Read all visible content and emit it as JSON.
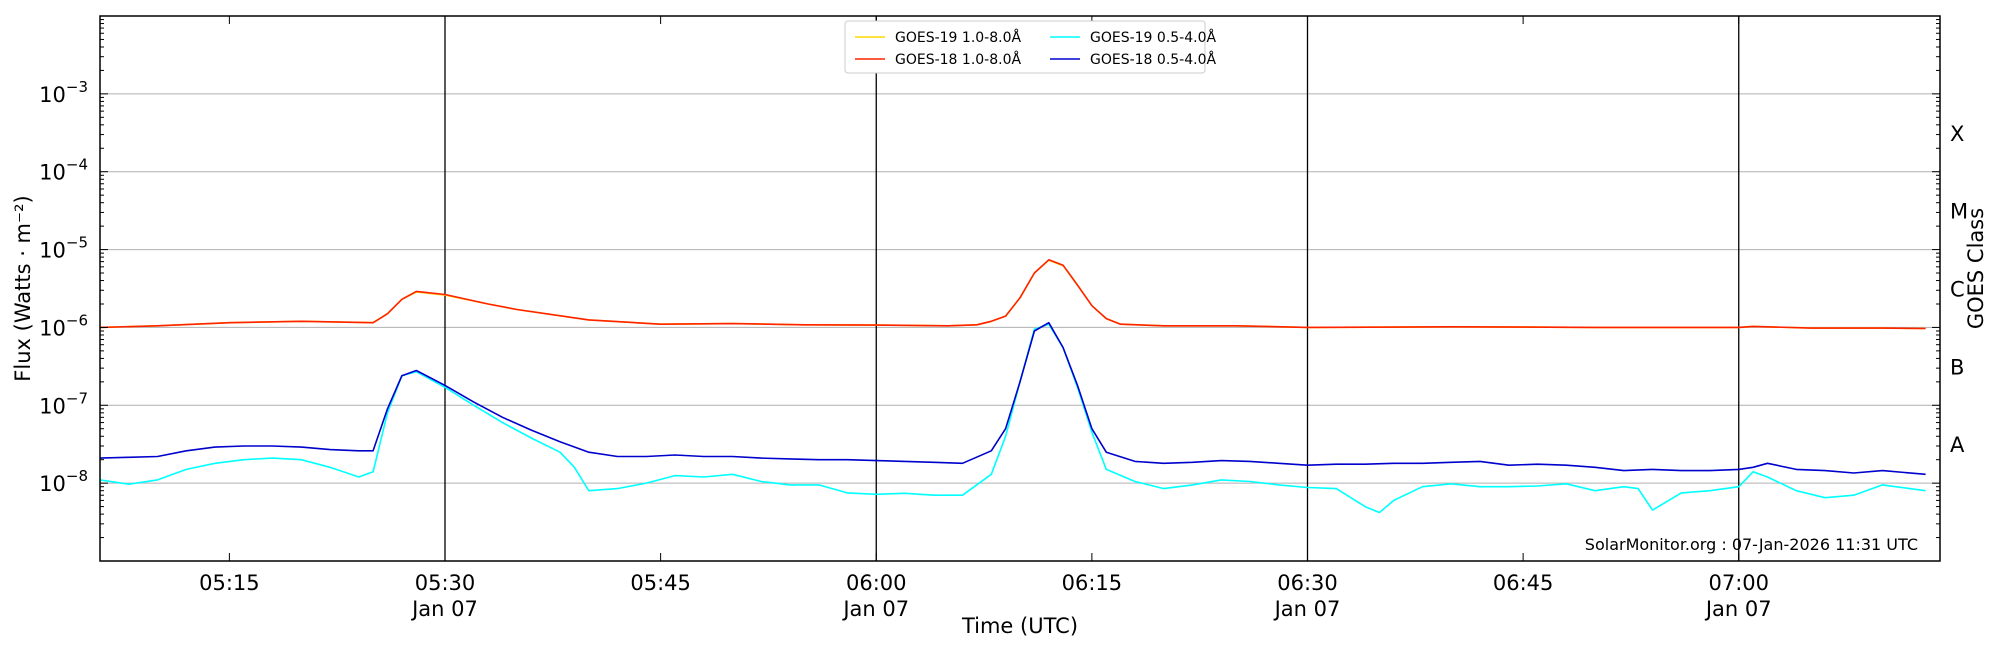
{
  "chart_data": {
    "type": "line",
    "xlabel": "Time (UTC)",
    "ylabel": "Flux (Watts · m⁻²)",
    "y2label": "GOES Class",
    "yscale": "log",
    "xlim": [
      "05:06",
      "07:14"
    ],
    "ylim": [
      1e-09,
      0.01
    ],
    "grid": "horizontal",
    "legend_position": "top-center",
    "x_ticks": [
      {
        "time": "05:15",
        "date": ""
      },
      {
        "time": "05:30",
        "date": "Jan 07"
      },
      {
        "time": "05:45",
        "date": ""
      },
      {
        "time": "06:00",
        "date": "Jan 07"
      },
      {
        "time": "06:15",
        "date": ""
      },
      {
        "time": "06:30",
        "date": "Jan 07"
      },
      {
        "time": "06:45",
        "date": ""
      },
      {
        "time": "07:00",
        "date": "Jan 07"
      }
    ],
    "y_ticks": [
      {
        "value": 1e-08,
        "base": "10",
        "exp": "−8"
      },
      {
        "value": 1e-07,
        "base": "10",
        "exp": "−7"
      },
      {
        "value": 1e-06,
        "base": "10",
        "exp": "−6"
      },
      {
        "value": 1e-05,
        "base": "10",
        "exp": "−5"
      },
      {
        "value": 0.0001,
        "base": "10",
        "exp": "−4"
      },
      {
        "value": 0.001,
        "base": "10",
        "exp": "−3"
      }
    ],
    "class_labels": [
      {
        "label": "A",
        "lower": 1e-08,
        "upper": 1e-07
      },
      {
        "label": "B",
        "lower": 1e-07,
        "upper": 1e-06
      },
      {
        "label": "C",
        "lower": 1e-06,
        "upper": 1e-05
      },
      {
        "label": "M",
        "lower": 1e-05,
        "upper": 0.0001
      },
      {
        "label": "X",
        "lower": 0.0001,
        "upper": 0.001
      }
    ],
    "date_lines": [
      "05:30",
      "06:00",
      "06:30",
      "07:00"
    ],
    "annotation": "SolarMonitor.org : 07-Jan-2026 11:31 UTC",
    "series": [
      {
        "name": "GOES-19 1.0-8.0Å",
        "color": "#ffd700",
        "x": [
          "05:06",
          "05:10",
          "05:15",
          "05:20",
          "05:25",
          "05:26",
          "05:27",
          "05:28",
          "05:30",
          "05:33",
          "05:35",
          "05:40",
          "05:45",
          "05:50",
          "05:55",
          "06:00",
          "06:05",
          "06:07",
          "06:08",
          "06:09",
          "06:10",
          "06:11",
          "06:12",
          "06:13",
          "06:14",
          "06:15",
          "06:16",
          "06:17",
          "06:20",
          "06:25",
          "06:30",
          "06:40",
          "06:50",
          "07:00",
          "07:01",
          "07:05",
          "07:10",
          "07:13"
        ],
        "values": [
          1e-06,
          1.05e-06,
          1.15e-06,
          1.2e-06,
          1.15e-06,
          1.5e-06,
          2.3e-06,
          2.85e-06,
          2.6e-06,
          2e-06,
          1.7e-06,
          1.25e-06,
          1.1e-06,
          1.12e-06,
          1.08e-06,
          1.07e-06,
          1.05e-06,
          1.08e-06,
          1.2e-06,
          1.4e-06,
          2.4e-06,
          5e-06,
          7.3e-06,
          6.2e-06,
          3.5e-06,
          1.9e-06,
          1.3e-06,
          1.1e-06,
          1.05e-06,
          1.05e-06,
          1e-06,
          1.02e-06,
          1e-06,
          1e-06,
          1.03e-06,
          9.8e-07,
          9.8e-07,
          9.7e-07
        ]
      },
      {
        "name": "GOES-18 1.0-8.0Å",
        "color": "#ff2200",
        "x": [
          "05:06",
          "05:10",
          "05:15",
          "05:20",
          "05:25",
          "05:26",
          "05:27",
          "05:28",
          "05:30",
          "05:33",
          "05:35",
          "05:40",
          "05:45",
          "05:50",
          "05:55",
          "06:00",
          "06:05",
          "06:07",
          "06:08",
          "06:09",
          "06:10",
          "06:11",
          "06:12",
          "06:13",
          "06:14",
          "06:15",
          "06:16",
          "06:17",
          "06:20",
          "06:25",
          "06:30",
          "06:40",
          "06:50",
          "07:00",
          "07:01",
          "07:05",
          "07:10",
          "07:13"
        ],
        "values": [
          1e-06,
          1.05e-06,
          1.15e-06,
          1.2e-06,
          1.15e-06,
          1.5e-06,
          2.3e-06,
          2.9e-06,
          2.65e-06,
          2e-06,
          1.7e-06,
          1.25e-06,
          1.1e-06,
          1.12e-06,
          1.08e-06,
          1.07e-06,
          1.05e-06,
          1.08e-06,
          1.2e-06,
          1.4e-06,
          2.4e-06,
          5e-06,
          7.4e-06,
          6.3e-06,
          3.5e-06,
          1.9e-06,
          1.3e-06,
          1.1e-06,
          1.05e-06,
          1.05e-06,
          1e-06,
          1.02e-06,
          1e-06,
          1e-06,
          1.03e-06,
          9.8e-07,
          9.8e-07,
          9.7e-07
        ]
      },
      {
        "name": "GOES-19 0.5-4.0Å",
        "color": "#00ffff",
        "x": [
          "05:06",
          "05:08",
          "05:10",
          "05:12",
          "05:14",
          "05:16",
          "05:18",
          "05:20",
          "05:22",
          "05:24",
          "05:25",
          "05:26",
          "05:27",
          "05:28",
          "05:30",
          "05:32",
          "05:34",
          "05:36",
          "05:38",
          "05:39",
          "05:40",
          "05:42",
          "05:44",
          "05:46",
          "05:48",
          "05:50",
          "05:52",
          "05:54",
          "05:56",
          "05:58",
          "06:00",
          "06:02",
          "06:04",
          "06:06",
          "06:08",
          "06:09",
          "06:10",
          "06:11",
          "06:12",
          "06:13",
          "06:14",
          "06:15",
          "06:16",
          "06:18",
          "06:20",
          "06:22",
          "06:24",
          "06:26",
          "06:28",
          "06:30",
          "06:32",
          "06:34",
          "06:35",
          "06:36",
          "06:38",
          "06:40",
          "06:42",
          "06:44",
          "06:46",
          "06:48",
          "06:50",
          "06:52",
          "06:53",
          "06:54",
          "06:56",
          "06:58",
          "07:00",
          "07:01",
          "07:02",
          "07:04",
          "07:06",
          "07:08",
          "07:10",
          "07:13"
        ],
        "values": [
          1.1e-08,
          9.7e-09,
          1.1e-08,
          1.5e-08,
          1.8e-08,
          2e-08,
          2.1e-08,
          2e-08,
          1.6e-08,
          1.2e-08,
          1.4e-08,
          8e-08,
          2.4e-07,
          2.7e-07,
          1.7e-07,
          1e-07,
          6e-08,
          3.8e-08,
          2.5e-08,
          1.6e-08,
          8e-09,
          8.5e-09,
          1e-08,
          1.25e-08,
          1.2e-08,
          1.3e-08,
          1.05e-08,
          9.5e-09,
          9.5e-09,
          7.5e-09,
          7.2e-09,
          7.4e-09,
          7e-09,
          7e-09,
          1.3e-08,
          4e-08,
          2e-07,
          9.5e-07,
          1.1e-06,
          5.5e-07,
          1.7e-07,
          4.5e-08,
          1.5e-08,
          1.05e-08,
          8.5e-09,
          9.5e-09,
          1.1e-08,
          1.05e-08,
          9.5e-09,
          8.8e-09,
          8.5e-09,
          5e-09,
          4.2e-09,
          6e-09,
          9e-09,
          9.8e-09,
          9e-09,
          9e-09,
          9.2e-09,
          9.8e-09,
          8e-09,
          9e-09,
          8.5e-09,
          4.5e-09,
          7.5e-09,
          8e-09,
          9e-09,
          1.4e-08,
          1.2e-08,
          8e-09,
          6.5e-09,
          7e-09,
          9.5e-09,
          8e-09
        ]
      },
      {
        "name": "GOES-18 0.5-4.0Å",
        "color": "#0000cd",
        "x": [
          "05:06",
          "05:08",
          "05:10",
          "05:12",
          "05:14",
          "05:16",
          "05:18",
          "05:20",
          "05:22",
          "05:24",
          "05:25",
          "05:26",
          "05:27",
          "05:28",
          "05:30",
          "05:32",
          "05:34",
          "05:36",
          "05:38",
          "05:40",
          "05:42",
          "05:44",
          "05:46",
          "05:48",
          "05:50",
          "05:52",
          "05:54",
          "05:56",
          "05:58",
          "06:00",
          "06:02",
          "06:04",
          "06:06",
          "06:08",
          "06:09",
          "06:10",
          "06:11",
          "06:12",
          "06:13",
          "06:14",
          "06:15",
          "06:16",
          "06:18",
          "06:20",
          "06:22",
          "06:24",
          "06:26",
          "06:28",
          "06:30",
          "06:32",
          "06:34",
          "06:36",
          "06:38",
          "06:40",
          "06:42",
          "06:44",
          "06:46",
          "06:48",
          "06:50",
          "06:52",
          "06:54",
          "06:56",
          "06:58",
          "07:00",
          "07:01",
          "07:02",
          "07:04",
          "07:06",
          "07:08",
          "07:10",
          "07:13"
        ],
        "values": [
          2.1e-08,
          2.15e-08,
          2.2e-08,
          2.6e-08,
          2.9e-08,
          3e-08,
          3e-08,
          2.9e-08,
          2.7e-08,
          2.6e-08,
          2.6e-08,
          9e-08,
          2.4e-07,
          2.8e-07,
          1.8e-07,
          1.1e-07,
          7e-08,
          4.8e-08,
          3.4e-08,
          2.5e-08,
          2.2e-08,
          2.2e-08,
          2.3e-08,
          2.2e-08,
          2.2e-08,
          2.1e-08,
          2.05e-08,
          2e-08,
          2e-08,
          1.95e-08,
          1.9e-08,
          1.85e-08,
          1.8e-08,
          2.6e-08,
          5e-08,
          2e-07,
          9e-07,
          1.15e-06,
          5.5e-07,
          1.8e-07,
          5e-08,
          2.5e-08,
          1.9e-08,
          1.8e-08,
          1.85e-08,
          1.95e-08,
          1.9e-08,
          1.8e-08,
          1.7e-08,
          1.75e-08,
          1.75e-08,
          1.8e-08,
          1.8e-08,
          1.85e-08,
          1.9e-08,
          1.7e-08,
          1.75e-08,
          1.7e-08,
          1.6e-08,
          1.45e-08,
          1.5e-08,
          1.45e-08,
          1.45e-08,
          1.5e-08,
          1.6e-08,
          1.8e-08,
          1.5e-08,
          1.45e-08,
          1.35e-08,
          1.45e-08,
          1.3e-08
        ]
      }
    ]
  }
}
